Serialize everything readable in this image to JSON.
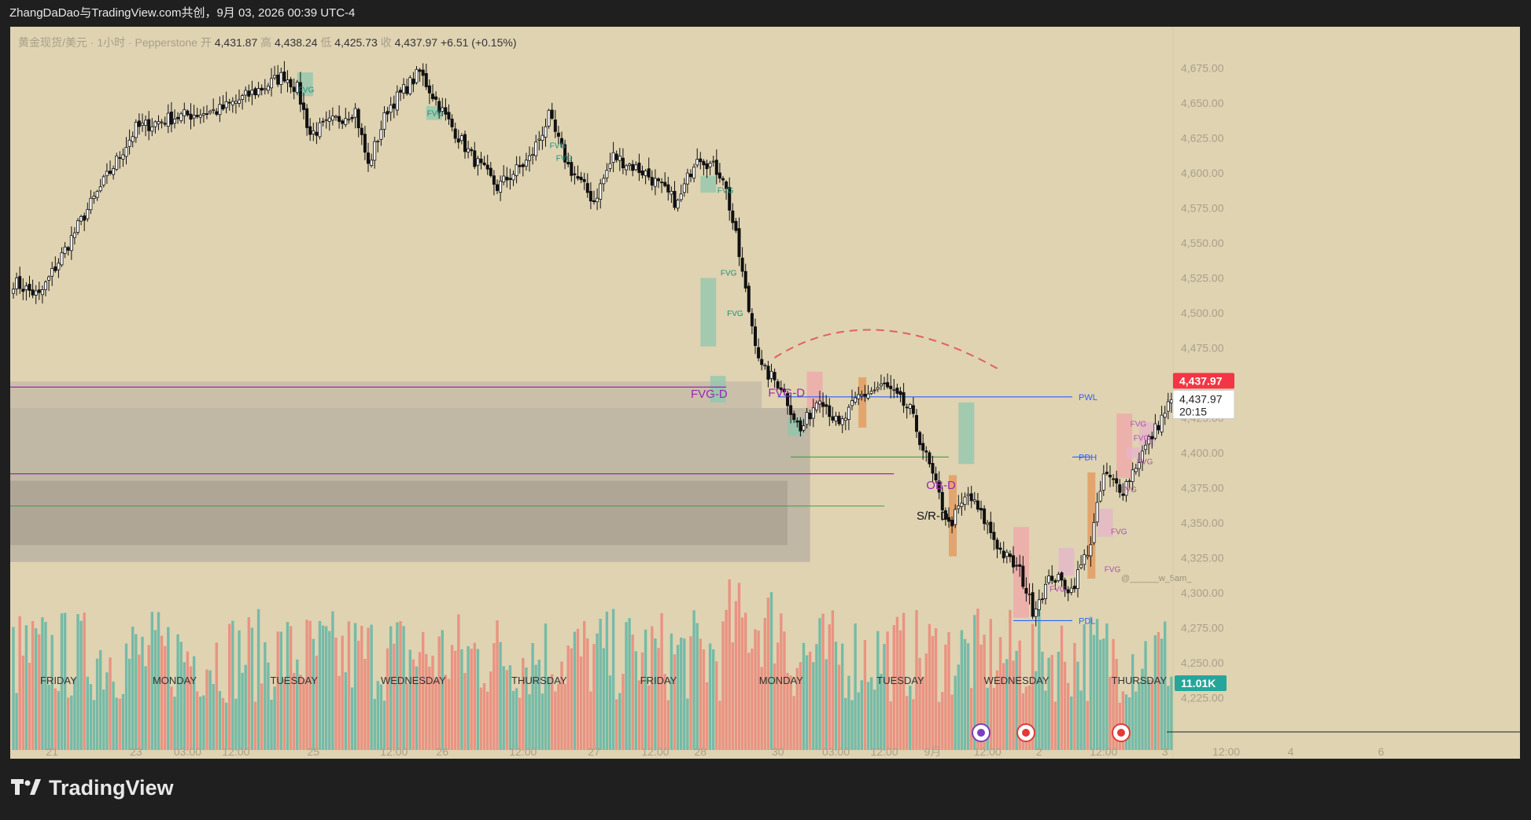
{
  "header": {
    "title": "ZhangDaDao与TradingView.com共创，9月 03, 2026 00:39 UTC-4"
  },
  "legend": {
    "symbol": "黄金现货/美元 · 1小时 · Pepperstone",
    "open_label": "开",
    "open": "4,431.87",
    "high_label": "高",
    "high": "4,438.24",
    "low_label": "低",
    "low": "4,425.73",
    "close_label": "收",
    "close": "4,437.97",
    "change": "+6.51 (+0.15%)"
  },
  "footer": {
    "brand": "TradingView"
  },
  "colors": {
    "bg": "#dfd3b2",
    "up_vol": "#6fb9a6",
    "down_vol": "#ea8f7f",
    "price_tag": "#f23645",
    "vol_tag": "#26a69a",
    "level_blue": "#2962ff",
    "purple": "#9c27b0"
  },
  "chart_data": {
    "type": "candlestick",
    "y_axis": {
      "ticks": [
        4225,
        4250,
        4275,
        4300,
        4325,
        4350,
        4375,
        4400,
        4425,
        4450,
        4475,
        4500,
        4525,
        4550,
        4575,
        4600,
        4625,
        4650,
        4675
      ],
      "tick_labels": [
        "4,225.00",
        "4,250.00",
        "4,275.00",
        "4,300.00",
        "4,325.00",
        "4,350.00",
        "4,375.00",
        "4,400.00",
        "4,425.00",
        "4,450.00",
        "4,475.00",
        "4,500.00",
        "4,525.00",
        "4,550.00",
        "4,575.00",
        "4,600.00",
        "4,625.00",
        "4,650.00",
        "4,675.00"
      ],
      "range": [
        4210,
        4690
      ]
    },
    "x_axis": {
      "tick_labels": [
        "21",
        "23",
        "03:00",
        "12:00",
        "25",
        "12:00",
        "26",
        "12:00",
        "27",
        "12:00",
        "28",
        "30",
        "03:00",
        "12:00",
        "9月",
        "12:00",
        "2",
        "12:00",
        "3",
        "12:00",
        "4",
        "6"
      ],
      "tick_index": [
        12,
        38,
        54,
        69,
        93,
        118,
        133,
        158,
        180,
        199,
        213,
        237,
        255,
        270,
        285,
        302,
        318,
        338,
        357,
        376,
        396,
        424
      ]
    },
    "days": [
      {
        "label": "FRIDAY",
        "index": 14
      },
      {
        "label": "MONDAY",
        "index": 50
      },
      {
        "label": "TUESDAY",
        "index": 87
      },
      {
        "label": "WEDNESDAY",
        "index": 124
      },
      {
        "label": "THURSDAY",
        "index": 163
      },
      {
        "label": "FRIDAY",
        "index": 200
      },
      {
        "label": "MONDAY",
        "index": 238
      },
      {
        "label": "TUESDAY",
        "index": 275
      },
      {
        "label": "WEDNESDAY",
        "index": 311
      },
      {
        "label": "THURSDAY",
        "index": 349
      }
    ],
    "anchors": [
      [
        0,
        4522
      ],
      [
        8,
        4512
      ],
      [
        22,
        4570
      ],
      [
        38,
        4632
      ],
      [
        50,
        4640
      ],
      [
        64,
        4645
      ],
      [
        78,
        4662
      ],
      [
        84,
        4670
      ],
      [
        88,
        4660
      ],
      [
        92,
        4628
      ],
      [
        100,
        4638
      ],
      [
        106,
        4645
      ],
      [
        110,
        4605
      ],
      [
        116,
        4646
      ],
      [
        126,
        4672
      ],
      [
        134,
        4640
      ],
      [
        142,
        4612
      ],
      [
        150,
        4590
      ],
      [
        160,
        4610
      ],
      [
        166,
        4640
      ],
      [
        172,
        4605
      ],
      [
        180,
        4580
      ],
      [
        186,
        4612
      ],
      [
        196,
        4600
      ],
      [
        206,
        4578
      ],
      [
        212,
        4614
      ],
      [
        220,
        4598
      ],
      [
        224,
        4554
      ],
      [
        228,
        4502
      ],
      [
        232,
        4460
      ],
      [
        238,
        4448
      ],
      [
        244,
        4415
      ],
      [
        250,
        4442
      ],
      [
        256,
        4418
      ],
      [
        262,
        4440
      ],
      [
        270,
        4448
      ],
      [
        278,
        4430
      ],
      [
        284,
        4390
      ],
      [
        290,
        4348
      ],
      [
        296,
        4370
      ],
      [
        302,
        4348
      ],
      [
        306,
        4330
      ],
      [
        312,
        4315
      ],
      [
        316,
        4288
      ],
      [
        322,
        4312
      ],
      [
        328,
        4302
      ],
      [
        334,
        4336
      ],
      [
        338,
        4384
      ],
      [
        344,
        4374
      ],
      [
        350,
        4400
      ],
      [
        356,
        4425
      ],
      [
        359,
        4438
      ]
    ],
    "levels": [
      {
        "name": "PWL",
        "price": 4440,
        "from_index": 237
      },
      {
        "name": "PDH",
        "price": 4397,
        "from_index": 334
      },
      {
        "name": "PDL",
        "price": 4280,
        "from_index": 310
      }
    ],
    "fvg_labels": [
      {
        "label": "FVG",
        "index": 88,
        "price": 4660
      },
      {
        "label": "FVG",
        "index": 128,
        "price": 4643
      },
      {
        "label": "FVG",
        "index": 166,
        "price": 4620
      },
      {
        "label": "FVG",
        "index": 168,
        "price": 4611
      },
      {
        "label": "FVG",
        "index": 218,
        "price": 4588
      },
      {
        "label": "FVG",
        "index": 219,
        "price": 4529
      },
      {
        "label": "FVG",
        "index": 221,
        "price": 4500
      },
      {
        "label": "FVG",
        "index": 346,
        "price": 4421
      },
      {
        "label": "FVG",
        "index": 347,
        "price": 4411
      },
      {
        "label": "FVG",
        "index": 348,
        "price": 4394
      },
      {
        "label": "FVG",
        "index": 343,
        "price": 4374
      },
      {
        "label": "FVG",
        "index": 340,
        "price": 4344
      },
      {
        "label": "FVG",
        "index": 338,
        "price": 4317
      },
      {
        "label": "FVG",
        "index": 321,
        "price": 4303
      }
    ],
    "zones": [
      {
        "label": "FVG-D",
        "price": 4442,
        "label_index": 210
      },
      {
        "label": "FVG-D",
        "price": 4443,
        "label_index": 234
      },
      {
        "label": "OB-D",
        "price": 4377,
        "label_index": 283
      },
      {
        "label": "S/R-D",
        "price": 4355,
        "label_index": 280
      }
    ],
    "last_price": "4,437.97",
    "last_price_value": 4437.97,
    "countdown": "20:15",
    "volume_label": "11.01K",
    "watermark": "@______w_5am_"
  }
}
